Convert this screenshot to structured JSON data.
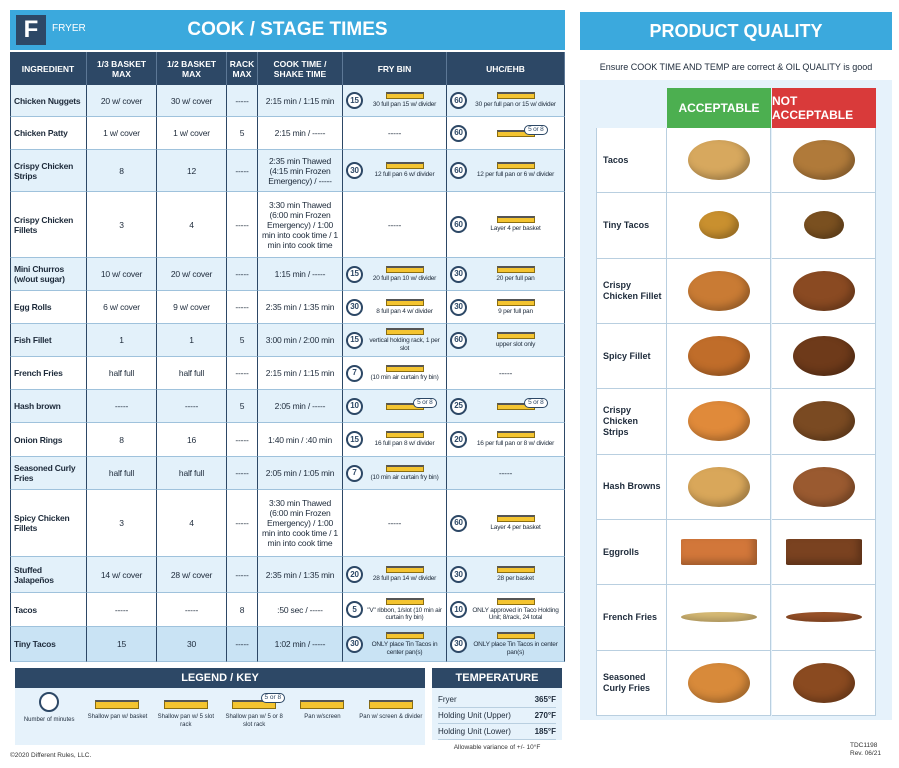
{
  "header": {
    "badge": "F",
    "section": "FRYER",
    "title": "COOK / STAGE TIMES"
  },
  "table": {
    "columns": [
      "INGREDIENT",
      "1/3 BASKET MAX",
      "1/2 BASKET MAX",
      "RACK MAX",
      "COOK TIME / SHAKE TIME",
      "FRY BIN",
      "UHC/EHB"
    ],
    "rows": [
      {
        "ingredient": "Chicken Nuggets",
        "third": "20 w/ cover",
        "half": "30 w/ cover",
        "rack": "-----",
        "cook": "2:15 min / 1:15 min",
        "fry": {
          "timer": 15,
          "note": "30 full pan 15 w/ divider"
        },
        "uhc": {
          "timer": 60,
          "note": "30 per full pan or 15 w/ divider"
        }
      },
      {
        "ingredient": "Chicken Patty",
        "third": "1 w/ cover",
        "half": "1 w/ cover",
        "rack": "5",
        "cook": "2:15 min / -----",
        "fry": {
          "text": "-----"
        },
        "uhc": {
          "timer": 60,
          "badge": "5 or 8"
        }
      },
      {
        "ingredient": "Crispy Chicken Strips",
        "third": "8",
        "half": "12",
        "rack": "-----",
        "cook": "2:35 min Thawed (4:15 min Frozen Emergency) / -----",
        "fry": {
          "timer": 30,
          "note": "12 full pan 6 w/ divider"
        },
        "uhc": {
          "timer": 60,
          "note": "12 per full pan or 6 w/ divider"
        }
      },
      {
        "ingredient": "Crispy Chicken Fillets",
        "third": "3",
        "half": "4",
        "rack": "-----",
        "cook": "3:30 min Thawed (6:00 min Frozen Emergency) / 1:00 min into cook time / 1 min into cook time",
        "fry": {
          "text": "-----"
        },
        "uhc": {
          "timer": 60,
          "note": "Layer 4 per basket"
        }
      },
      {
        "ingredient": "Mini Churros (w/out sugar)",
        "third": "10 w/ cover",
        "half": "20 w/ cover",
        "rack": "-----",
        "cook": "1:15 min / -----",
        "fry": {
          "timer": 15,
          "note": "20 full pan 10 w/ divider"
        },
        "uhc": {
          "timer": 30,
          "note": "20 per full pan"
        }
      },
      {
        "ingredient": "Egg Rolls",
        "third": "6 w/ cover",
        "half": "9 w/ cover",
        "rack": "-----",
        "cook": "2:35 min / 1:35 min",
        "fry": {
          "timer": 30,
          "note": "8 full pan 4 w/ divider"
        },
        "uhc": {
          "timer": 30,
          "note": "9 per full pan"
        }
      },
      {
        "ingredient": "Fish Fillet",
        "third": "1",
        "half": "1",
        "rack": "5",
        "cook": "3:00 min / 2:00 min",
        "fry": {
          "timer": 15,
          "note": "vertical holding rack, 1 per slot"
        },
        "uhc": {
          "timer": 60,
          "note": "upper slot only"
        }
      },
      {
        "ingredient": "French Fries",
        "third": "half full",
        "half": "half full",
        "rack": "-----",
        "cook": "2:15 min / 1:15 min",
        "fry": {
          "timer": 7,
          "note": "(10 min air curtain fry bin)"
        },
        "uhc": {
          "text": "-----"
        }
      },
      {
        "ingredient": "Hash brown",
        "third": "-----",
        "half": "-----",
        "rack": "5",
        "cook": "2:05 min / -----",
        "fry": {
          "timer": 10,
          "badge": "5 or 8"
        },
        "uhc": {
          "timer": 25,
          "badge": "5 or 8"
        }
      },
      {
        "ingredient": "Onion Rings",
        "third": "8",
        "half": "16",
        "rack": "-----",
        "cook": "1:40 min / :40 min",
        "fry": {
          "timer": 15,
          "note": "16 full pan 8 w/ divider"
        },
        "uhc": {
          "timer": 20,
          "note": "16 per full pan or 8 w/ divider"
        }
      },
      {
        "ingredient": "Seasoned Curly Fries",
        "third": "half full",
        "half": "half full",
        "rack": "-----",
        "cook": "2:05 min / 1:05 min",
        "fry": {
          "timer": 7,
          "note": "(10 min air curtain fry bin)"
        },
        "uhc": {
          "text": "-----"
        }
      },
      {
        "ingredient": "Spicy Chicken Fillets",
        "third": "3",
        "half": "4",
        "rack": "-----",
        "cook": "3:30 min Thawed (6:00 min Frozen Emergency) / 1:00 min into cook time / 1 min into cook time",
        "fry": {
          "text": "-----"
        },
        "uhc": {
          "timer": 60,
          "note": "Layer 4 per basket"
        }
      },
      {
        "ingredient": "Stuffed Jalapeños",
        "third": "14 w/ cover",
        "half": "28 w/ cover",
        "rack": "-----",
        "cook": "2:35 min / 1:35 min",
        "fry": {
          "timer": 20,
          "note": "28 full pan 14 w/ divider"
        },
        "uhc": {
          "timer": 30,
          "note": "28 per basket"
        }
      },
      {
        "ingredient": "Tacos",
        "third": "-----",
        "half": "-----",
        "rack": "8",
        "cook": ":50 sec / -----",
        "fry": {
          "timer": 5,
          "note": "\"V\" ribbon, 1/slot (10 min air curtain fry bin)"
        },
        "uhc": {
          "timer": 10,
          "note": "ONLY approved in Taco Holding Unit; 8/rack, 24 total"
        }
      },
      {
        "ingredient": "Tiny Tacos",
        "third": "15",
        "half": "30",
        "rack": "-----",
        "cook": "1:02 min / -----",
        "fry": {
          "timer": 30,
          "note": "ONLY place Tin Tacos in center pan(s)"
        },
        "uhc": {
          "timer": 30,
          "note": "ONLY place Tin Tacos in center pan(s)"
        }
      }
    ]
  },
  "legend": {
    "title": "LEGEND / KEY",
    "items": [
      {
        "label": "Number of minutes"
      },
      {
        "label": "Shallow pan w/ basket"
      },
      {
        "label": "Shallow pan w/ 5 slot rack"
      },
      {
        "label": "Shallow pan w/ 5 or 8 slot rack",
        "badge": "5 or 8"
      },
      {
        "label": "Pan w/screen"
      },
      {
        "label": "Pan w/ screen & divider"
      }
    ]
  },
  "temperature": {
    "title": "TEMPERATURE",
    "rows": [
      {
        "label": "Fryer",
        "value": "365°F"
      },
      {
        "label": "Holding Unit (Upper)",
        "value": "270°F"
      },
      {
        "label": "Holding Unit (Lower)",
        "value": "185°F"
      }
    ],
    "note": "Allowable variance of +/- 10°F"
  },
  "footer": {
    "copyright": "©2020 Different Rules, LLC.",
    "code": "TDC1198",
    "revision": "Rev. 06/21"
  },
  "quality": {
    "title": "PRODUCT QUALITY",
    "subtitle": "Ensure COOK TIME AND TEMP are correct & OIL QUALITY is good",
    "acceptable": "ACCEPTABLE",
    "not_acceptable": "NOT ACCEPTABLE",
    "products": [
      "Tacos",
      "Tiny Tacos",
      "Crispy Chicken Fillet",
      "Spicy Fillet",
      "Crispy Chicken Strips",
      "Hash Browns",
      "Eggrolls",
      "French Fries",
      "Seasoned Curly Fries"
    ]
  }
}
